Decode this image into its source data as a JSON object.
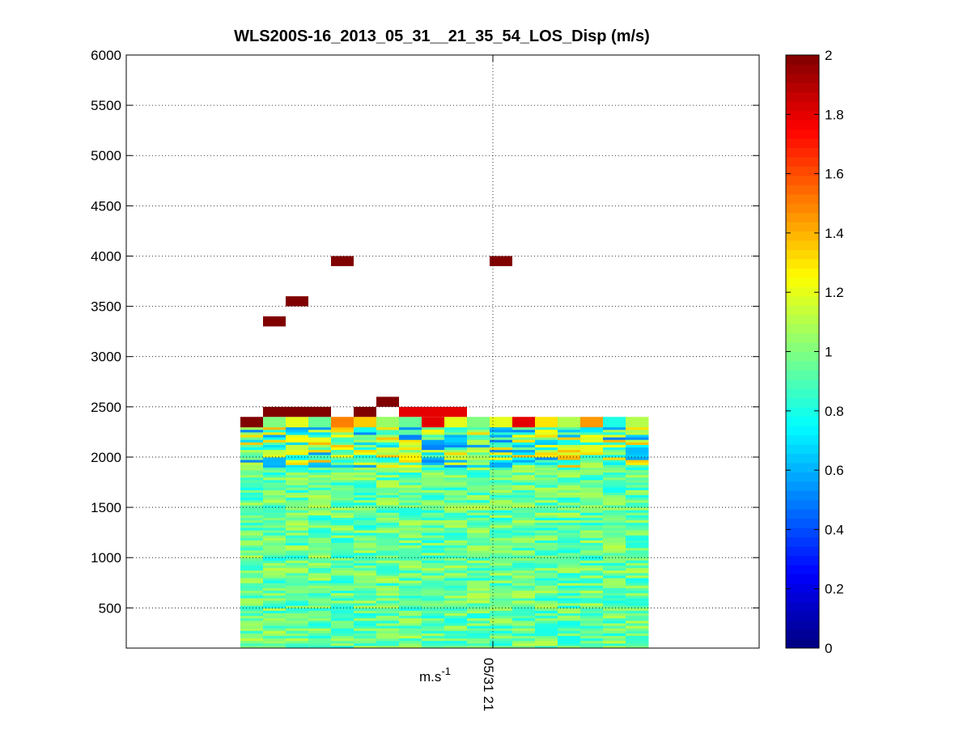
{
  "chart_data": {
    "type": "heatmap",
    "title": "WLS200S-16_2013_05_31__21_35_54_LOS_Disp (m/s)",
    "xlabel": "m.s-1",
    "xlabel_base": "m.s",
    "xlabel_exp": "-1",
    "ylabel": "",
    "ylim": [
      100,
      6000
    ],
    "y_ticks": [
      500,
      1000,
      1500,
      2000,
      2500,
      3000,
      3500,
      4000,
      4500,
      5000,
      5500,
      6000
    ],
    "x_ticks": [
      "05/31 21"
    ],
    "grid": true,
    "colorbar": {
      "colormap": "jet",
      "range": [
        0,
        2
      ],
      "ticks": [
        "0",
        "0.2",
        "0.4",
        "0.6",
        "0.8",
        "1",
        "1.2",
        "1.4",
        "1.6",
        "1.8",
        "2"
      ]
    },
    "columns": 18,
    "altitude_range_m": [
      100,
      2400
    ],
    "column_top_values": [
      2.0,
      1.0,
      1.2,
      0.95,
      1.5,
      1.35,
      1.05,
      0.95,
      1.8,
      1.2,
      1.0,
      1.2,
      1.8,
      1.3,
      1.1,
      1.45,
      0.8,
      1.1
    ],
    "high_altitude_cells": [
      {
        "column": 1,
        "altitude": 2450,
        "value": 2.0
      },
      {
        "column": 2,
        "altitude": 2450,
        "value": 2.0
      },
      {
        "column": 3,
        "altitude": 2450,
        "value": 2.0
      },
      {
        "column": 5,
        "altitude": 2450,
        "value": 2.0
      },
      {
        "column": 6,
        "altitude": 2550,
        "value": 2.0
      },
      {
        "column": 7,
        "altitude": 2450,
        "value": 1.8
      },
      {
        "column": 8,
        "altitude": 2450,
        "value": 1.8
      },
      {
        "column": 9,
        "altitude": 2450,
        "value": 1.8
      },
      {
        "column": 1,
        "altitude": 3350,
        "value": 2.0
      },
      {
        "column": 2,
        "altitude": 3550,
        "value": 2.0
      },
      {
        "column": 4,
        "altitude": 3950,
        "value": 2.0
      },
      {
        "column": 11,
        "altitude": 3950,
        "value": 2.0
      }
    ],
    "typical_value_below_1900m": 0.95
  }
}
